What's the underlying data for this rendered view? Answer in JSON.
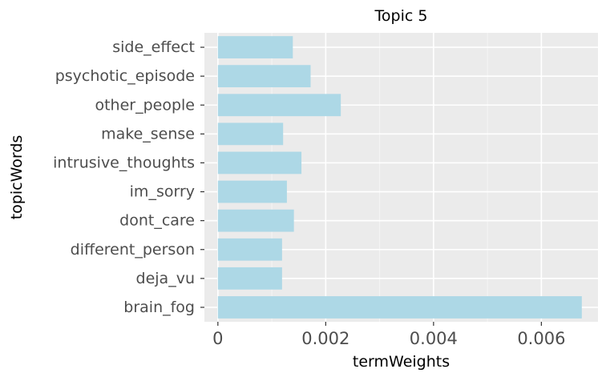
{
  "chart_data": {
    "type": "bar",
    "orientation": "horizontal",
    "title": "Topic 5",
    "xlabel": "termWeights",
    "ylabel": "topicWords",
    "categories": [
      "side_effect",
      "psychotic_episode",
      "other_people",
      "make_sense",
      "intrusive_thoughts",
      "im_sorry",
      "dont_care",
      "different_person",
      "deja_vu",
      "brain_fog"
    ],
    "values": [
      0.00139,
      0.00172,
      0.00228,
      0.00121,
      0.00155,
      0.00128,
      0.00141,
      0.00119,
      0.00119,
      0.00675
    ],
    "xlim": [
      -0.00025,
      0.00705
    ],
    "xticks": [
      0,
      0.002,
      0.004,
      0.006
    ],
    "xtick_labels": [
      "0",
      "0.002",
      "0.004",
      "0.006"
    ],
    "grid": true,
    "legend": "none",
    "colors": {
      "bar": "#add8e6",
      "panel": "#ebebeb",
      "grid_major": "#ffffff",
      "grid_minor": "#f5f5f5",
      "tick_text": "#4d4d4d",
      "tick_mark": "#333333"
    }
  }
}
